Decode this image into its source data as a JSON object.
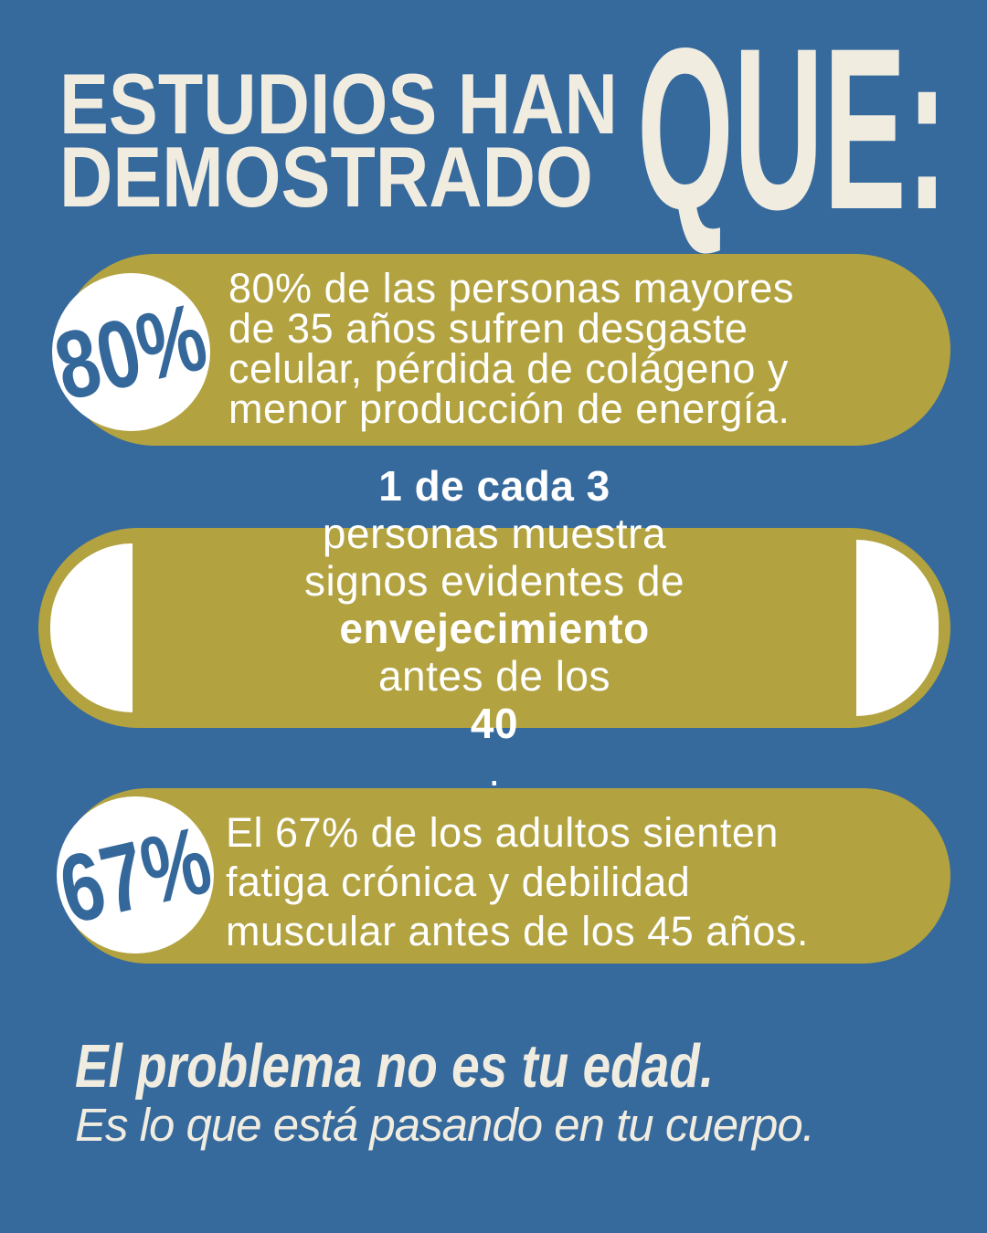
{
  "colors": {
    "background": "#36699c",
    "card-gold": "#b2a240",
    "cream": "#f1ece0",
    "badge-text-blue": "#35689a",
    "card-text-white": "#ffffff"
  },
  "header": {
    "line1": "ESTUDIOS HAN",
    "line2": "DEMOSTRADO",
    "emphasis": "QUE:"
  },
  "cards": [
    {
      "badge": "80%",
      "lines": [
        "80% de las personas mayores",
        "de 35 años sufren desgaste",
        "celular, pérdida de colágeno y",
        "menor producción de energía."
      ]
    },
    {
      "lines": [
        {
          "segments": [
            {
              "text": "1 de cada 3",
              "bold": true
            },
            {
              "text": " personas muestra",
              "bold": false
            }
          ]
        },
        {
          "segments": [
            {
              "text": "signos evidentes de",
              "bold": false
            }
          ]
        },
        {
          "segments": [
            {
              "text": "envejecimiento",
              "bold": true
            },
            {
              "text": " antes de los ",
              "bold": false
            },
            {
              "text": "40",
              "bold": true
            },
            {
              "text": ".",
              "bold": false
            }
          ]
        }
      ]
    },
    {
      "badge": "67%",
      "lines": [
        "El 67% de los adultos sienten",
        "fatiga crónica y debilidad",
        "muscular antes de los 45 años."
      ]
    }
  ],
  "footer": {
    "line1": "El problema no es tu edad.",
    "line2": "Es lo que está pasando en tu cuerpo."
  }
}
